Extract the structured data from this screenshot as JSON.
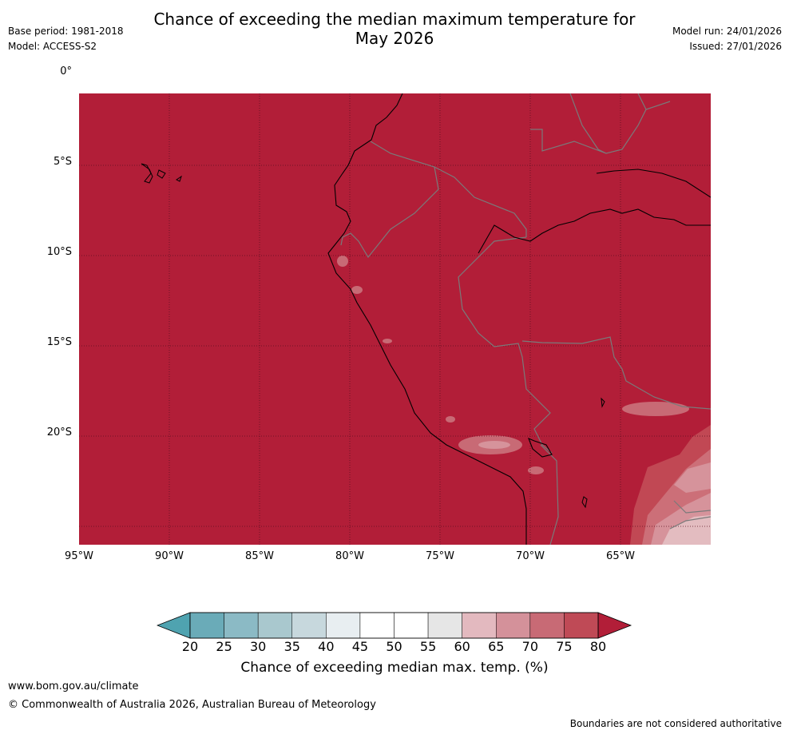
{
  "title_line1": "Chance of exceeding the median maximum temperature for",
  "title_line2": "May 2026",
  "meta_left": [
    "Base period: 1981-2018",
    "Model: ACCESS-S2"
  ],
  "meta_right": [
    "Model run: 24/01/2026",
    "Issued: 27/01/2026"
  ],
  "lat_labels": [
    "0°",
    "5°S",
    "10°S",
    "15°S",
    "20°S"
  ],
  "lon_labels": [
    "95°W",
    "90°W",
    "85°W",
    "80°W",
    "75°W",
    "70°W",
    "65°W"
  ],
  "colorbar": {
    "ticks": [
      "20",
      "25",
      "30",
      "35",
      "40",
      "45",
      "50",
      "55",
      "60",
      "65",
      "70",
      "75",
      "80"
    ],
    "colors": [
      "#6aabb8",
      "#8bbac5",
      "#a9c8ce",
      "#c7d8dd",
      "#e8eef1",
      "#ffffff",
      "#ffffff",
      "#e6e6e6",
      "#e3b9bf",
      "#d4919a",
      "#c86a75",
      "#bf4a56"
    ],
    "under_color": "#4fa3b0",
    "over_color": "#b21e38",
    "label": "Chance of exceeding median max. temp. (%)"
  },
  "map_colors": {
    "dominant": "#b21e38",
    "c75": "#c14854",
    "c70": "#cc6f78",
    "c65": "#d6939b",
    "c60": "#e3bcc0"
  },
  "footer_url": "www.bom.gov.au/climate",
  "footer_copyright": "© Commonwealth of Australia 2026, Australian Bureau of Meteorology",
  "disclaimer": "Boundaries are not considered authoritative"
}
